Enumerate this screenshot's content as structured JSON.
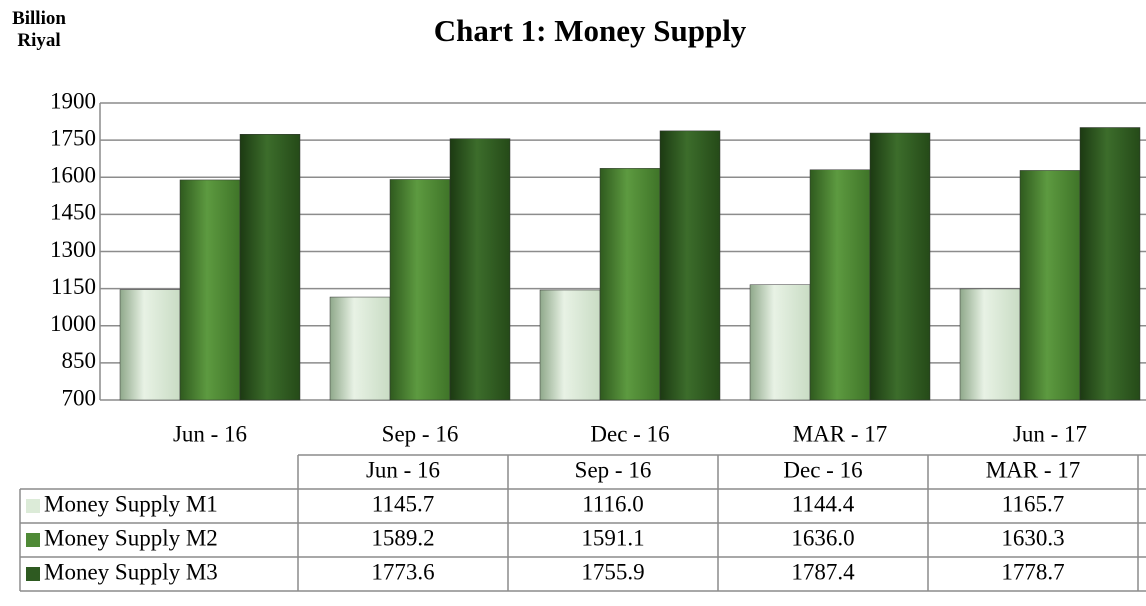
{
  "chart_data": {
    "type": "bar",
    "title": "Chart  1: Money Supply",
    "y_label": "Billion Riyal",
    "categories": [
      "Jun - 16",
      "Sep - 16",
      "Dec - 16",
      "MAR - 17",
      "Jun - 17"
    ],
    "series": [
      {
        "name": "Money Supply M1",
        "color": "#dcebd8",
        "values": [
          1145.7,
          1116.0,
          1144.4,
          1165.7,
          1148.8
        ],
        "value_labels": [
          "1145.7",
          "1116.0",
          "1144.4",
          "1165.7",
          "1148.8"
        ]
      },
      {
        "name": "Money Supply M2",
        "color": "#4f8a36",
        "values": [
          1589.2,
          1591.1,
          1636.0,
          1630.3,
          1627.6
        ],
        "value_labels": [
          "1589.2",
          "1591.1",
          "1636.0",
          "1630.3",
          "1627.6"
        ]
      },
      {
        "name": "Money Supply M3",
        "color": "#2e5a21",
        "values": [
          1773.6,
          1755.9,
          1787.4,
          1778.7,
          1801.0
        ],
        "value_labels": [
          "1773.6",
          "1755.9",
          "1787.4",
          "1778.7",
          "1801.0"
        ]
      }
    ],
    "ylim": [
      700,
      1900
    ],
    "yticks": [
      700,
      850,
      1000,
      1150,
      1300,
      1450,
      1600,
      1750,
      1900
    ],
    "grid": true,
    "data_table": true
  }
}
